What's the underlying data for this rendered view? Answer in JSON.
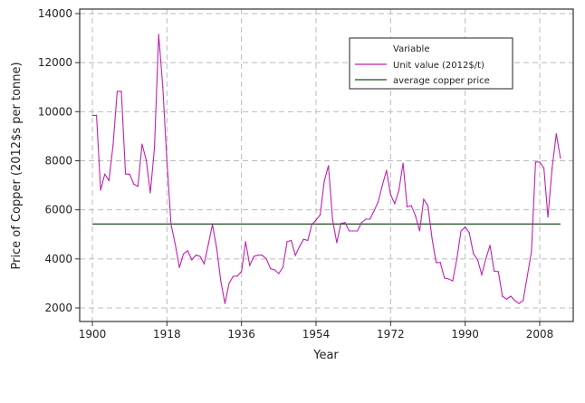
{
  "chart_data": {
    "type": "line",
    "title": "",
    "xlabel": "Year",
    "ylabel": "Price of Copper (2012$s per tonne)",
    "xlim": [
      1897,
      2016
    ],
    "ylim": [
      1300,
      14300
    ],
    "xticks": [
      1900,
      1918,
      1936,
      1954,
      1972,
      1990,
      2008
    ],
    "yticks": [
      2000,
      4000,
      6000,
      8000,
      10000,
      12000,
      14000
    ],
    "grid": true,
    "legend": {
      "title": "Variable",
      "placement": "top-right"
    },
    "series": [
      {
        "name": "Unit value (2012$/t)",
        "color": "#c020b0",
        "x_start": 1900,
        "values": [
          9850,
          9850,
          6800,
          7450,
          7200,
          8650,
          10830,
          10830,
          7460,
          7450,
          7050,
          6950,
          8680,
          8020,
          6690,
          8530,
          13150,
          11000,
          8000,
          5400,
          4600,
          3650,
          4200,
          4330,
          3960,
          4150,
          4100,
          3800,
          4600,
          5400,
          4450,
          3100,
          2180,
          3000,
          3290,
          3300,
          3480,
          4700,
          3730,
          4100,
          4150,
          4150,
          4000,
          3600,
          3550,
          3400,
          3650,
          4700,
          4750,
          4140,
          4500,
          4800,
          4750,
          5400,
          5580,
          5800,
          7170,
          7800,
          5580,
          4660,
          5440,
          5480,
          5140,
          5140,
          5140,
          5480,
          5620,
          5620,
          5950,
          6320,
          7000,
          7610,
          6620,
          6250,
          6800,
          7900,
          6120,
          6170,
          5760,
          5140,
          6430,
          6170,
          4830,
          3850,
          3850,
          3220,
          3180,
          3100,
          4000,
          5140,
          5300,
          5060,
          4210,
          3960,
          3350,
          4000,
          4550,
          3500,
          3480,
          2480,
          2360,
          2480,
          2300,
          2180,
          2300,
          3300,
          4300,
          7950,
          7950,
          7700,
          5700,
          7700,
          9100,
          8100
        ]
      },
      {
        "name": "average copper price",
        "color": "#1e4a1e",
        "x_range": [
          1900,
          2013
        ],
        "value": 5420
      }
    ]
  }
}
